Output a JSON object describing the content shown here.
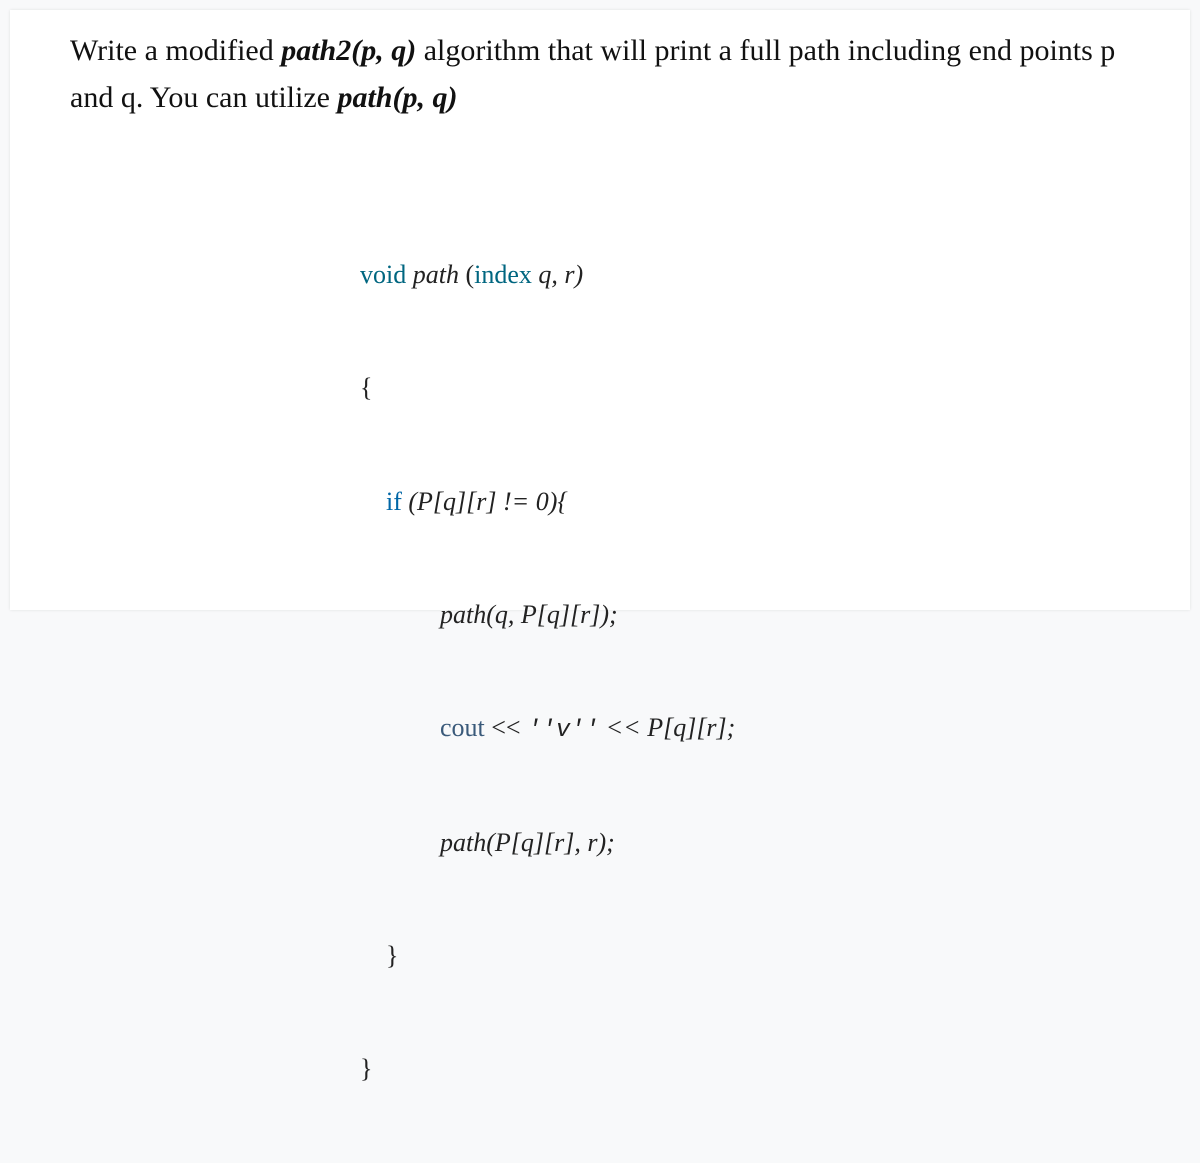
{
  "prompt": {
    "pre1": "Write a modified ",
    "fn1": "path2(p, q)",
    "mid1": " algorithm that will print a full path including end points p and q. You can utilize ",
    "fn2": "path(p, q)"
  },
  "code": {
    "l1": {
      "kw": "void",
      "sp": " ",
      "fn": "path",
      "rest1": " (",
      "kwin": "index",
      "rest2": " q, r)"
    },
    "l2": {
      "txt": "{"
    },
    "l3": {
      "kw": "if",
      "rest": " (P[q][r] != 0){"
    },
    "l4": {
      "fn": "path",
      "rest": "(q, P[q][r]);"
    },
    "l5": {
      "kw": "cout",
      "mid": " << ",
      "lit": "''v''",
      "tail": " << P[q][r];"
    },
    "l6": {
      "fn": "path",
      "rest": "(P[q][r], r);"
    },
    "l7": {
      "txt": "}"
    },
    "l8": {
      "txt": "}"
    }
  }
}
